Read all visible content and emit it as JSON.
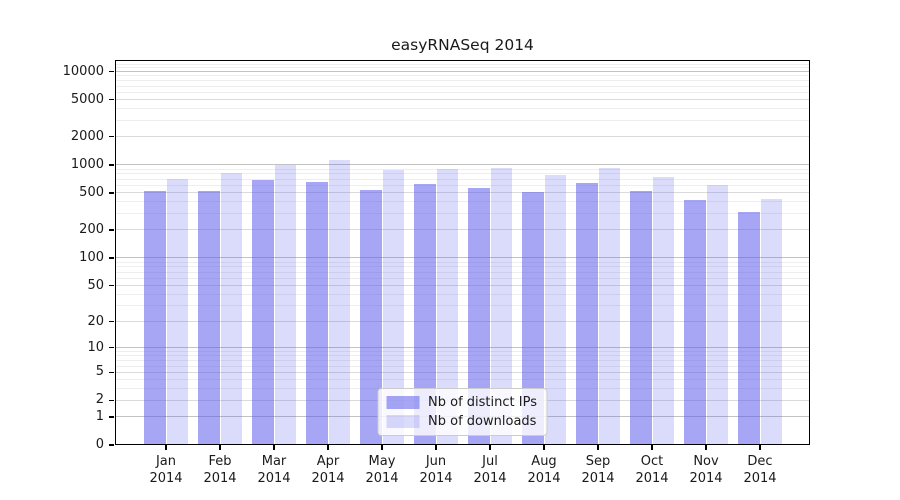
{
  "chart_data": {
    "type": "bar",
    "title": "easyRNASeq 2014",
    "categories": [
      "Jan",
      "Feb",
      "Mar",
      "Apr",
      "May",
      "Jun",
      "Jul",
      "Aug",
      "Sep",
      "Oct",
      "Nov",
      "Dec"
    ],
    "category_year": "2014",
    "series": [
      {
        "name": "Nb of distinct IPs",
        "color": "rgba(92,92,235,0.55)",
        "values": [
          520,
          520,
          690,
          650,
          540,
          620,
          570,
          510,
          635,
          525,
          420,
          315
        ]
      },
      {
        "name": "Nb of downloads",
        "color": "rgba(92,92,235,0.22)",
        "values": [
          710,
          815,
          1000,
          1130,
          885,
          905,
          930,
          775,
          920,
          735,
          605,
          430
        ]
      }
    ],
    "y_scale": "log1p",
    "y_ticks": [
      0,
      1,
      2,
      5,
      10,
      20,
      50,
      100,
      200,
      500,
      1000,
      2000,
      5000,
      10000
    ],
    "ylim": [
      0,
      13300
    ],
    "grid": true,
    "legend_position": "lower center",
    "colors": {
      "grid_major": "#c2c2c2",
      "grid_mid": "#dadada",
      "grid_minor": "#eeeeee",
      "axis": "#000000",
      "text": "#1a1a1a",
      "background": "#ffffff"
    }
  }
}
